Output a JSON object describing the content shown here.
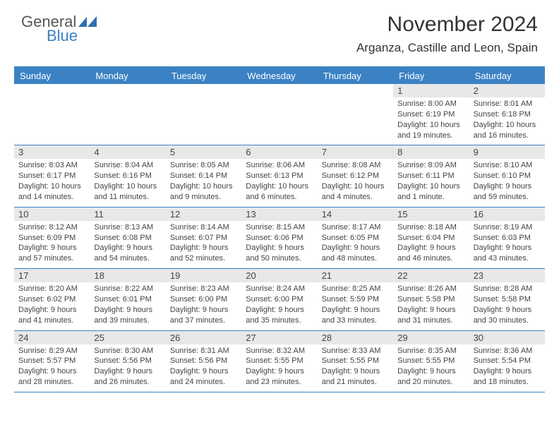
{
  "brand": {
    "general": "General",
    "blue": "Blue"
  },
  "header": {
    "title": "November 2024",
    "location": "Arganza, Castille and Leon, Spain"
  },
  "colors": {
    "accent": "#3b82c4",
    "header_bg": "#3b82c4",
    "daynum_bg": "#e8e8e8",
    "text": "#444444",
    "background": "#ffffff"
  },
  "day_labels": [
    "Sunday",
    "Monday",
    "Tuesday",
    "Wednesday",
    "Thursday",
    "Friday",
    "Saturday"
  ],
  "weeks": [
    [
      {
        "n": "",
        "sunrise": "",
        "sunset": "",
        "daylight": ""
      },
      {
        "n": "",
        "sunrise": "",
        "sunset": "",
        "daylight": ""
      },
      {
        "n": "",
        "sunrise": "",
        "sunset": "",
        "daylight": ""
      },
      {
        "n": "",
        "sunrise": "",
        "sunset": "",
        "daylight": ""
      },
      {
        "n": "",
        "sunrise": "",
        "sunset": "",
        "daylight": ""
      },
      {
        "n": "1",
        "sunrise": "Sunrise: 8:00 AM",
        "sunset": "Sunset: 6:19 PM",
        "daylight": "Daylight: 10 hours and 19 minutes."
      },
      {
        "n": "2",
        "sunrise": "Sunrise: 8:01 AM",
        "sunset": "Sunset: 6:18 PM",
        "daylight": "Daylight: 10 hours and 16 minutes."
      }
    ],
    [
      {
        "n": "3",
        "sunrise": "Sunrise: 8:03 AM",
        "sunset": "Sunset: 6:17 PM",
        "daylight": "Daylight: 10 hours and 14 minutes."
      },
      {
        "n": "4",
        "sunrise": "Sunrise: 8:04 AM",
        "sunset": "Sunset: 6:16 PM",
        "daylight": "Daylight: 10 hours and 11 minutes."
      },
      {
        "n": "5",
        "sunrise": "Sunrise: 8:05 AM",
        "sunset": "Sunset: 6:14 PM",
        "daylight": "Daylight: 10 hours and 9 minutes."
      },
      {
        "n": "6",
        "sunrise": "Sunrise: 8:06 AM",
        "sunset": "Sunset: 6:13 PM",
        "daylight": "Daylight: 10 hours and 6 minutes."
      },
      {
        "n": "7",
        "sunrise": "Sunrise: 8:08 AM",
        "sunset": "Sunset: 6:12 PM",
        "daylight": "Daylight: 10 hours and 4 minutes."
      },
      {
        "n": "8",
        "sunrise": "Sunrise: 8:09 AM",
        "sunset": "Sunset: 6:11 PM",
        "daylight": "Daylight: 10 hours and 1 minute."
      },
      {
        "n": "9",
        "sunrise": "Sunrise: 8:10 AM",
        "sunset": "Sunset: 6:10 PM",
        "daylight": "Daylight: 9 hours and 59 minutes."
      }
    ],
    [
      {
        "n": "10",
        "sunrise": "Sunrise: 8:12 AM",
        "sunset": "Sunset: 6:09 PM",
        "daylight": "Daylight: 9 hours and 57 minutes."
      },
      {
        "n": "11",
        "sunrise": "Sunrise: 8:13 AM",
        "sunset": "Sunset: 6:08 PM",
        "daylight": "Daylight: 9 hours and 54 minutes."
      },
      {
        "n": "12",
        "sunrise": "Sunrise: 8:14 AM",
        "sunset": "Sunset: 6:07 PM",
        "daylight": "Daylight: 9 hours and 52 minutes."
      },
      {
        "n": "13",
        "sunrise": "Sunrise: 8:15 AM",
        "sunset": "Sunset: 6:06 PM",
        "daylight": "Daylight: 9 hours and 50 minutes."
      },
      {
        "n": "14",
        "sunrise": "Sunrise: 8:17 AM",
        "sunset": "Sunset: 6:05 PM",
        "daylight": "Daylight: 9 hours and 48 minutes."
      },
      {
        "n": "15",
        "sunrise": "Sunrise: 8:18 AM",
        "sunset": "Sunset: 6:04 PM",
        "daylight": "Daylight: 9 hours and 46 minutes."
      },
      {
        "n": "16",
        "sunrise": "Sunrise: 8:19 AM",
        "sunset": "Sunset: 6:03 PM",
        "daylight": "Daylight: 9 hours and 43 minutes."
      }
    ],
    [
      {
        "n": "17",
        "sunrise": "Sunrise: 8:20 AM",
        "sunset": "Sunset: 6:02 PM",
        "daylight": "Daylight: 9 hours and 41 minutes."
      },
      {
        "n": "18",
        "sunrise": "Sunrise: 8:22 AM",
        "sunset": "Sunset: 6:01 PM",
        "daylight": "Daylight: 9 hours and 39 minutes."
      },
      {
        "n": "19",
        "sunrise": "Sunrise: 8:23 AM",
        "sunset": "Sunset: 6:00 PM",
        "daylight": "Daylight: 9 hours and 37 minutes."
      },
      {
        "n": "20",
        "sunrise": "Sunrise: 8:24 AM",
        "sunset": "Sunset: 6:00 PM",
        "daylight": "Daylight: 9 hours and 35 minutes."
      },
      {
        "n": "21",
        "sunrise": "Sunrise: 8:25 AM",
        "sunset": "Sunset: 5:59 PM",
        "daylight": "Daylight: 9 hours and 33 minutes."
      },
      {
        "n": "22",
        "sunrise": "Sunrise: 8:26 AM",
        "sunset": "Sunset: 5:58 PM",
        "daylight": "Daylight: 9 hours and 31 minutes."
      },
      {
        "n": "23",
        "sunrise": "Sunrise: 8:28 AM",
        "sunset": "Sunset: 5:58 PM",
        "daylight": "Daylight: 9 hours and 30 minutes."
      }
    ],
    [
      {
        "n": "24",
        "sunrise": "Sunrise: 8:29 AM",
        "sunset": "Sunset: 5:57 PM",
        "daylight": "Daylight: 9 hours and 28 minutes."
      },
      {
        "n": "25",
        "sunrise": "Sunrise: 8:30 AM",
        "sunset": "Sunset: 5:56 PM",
        "daylight": "Daylight: 9 hours and 26 minutes."
      },
      {
        "n": "26",
        "sunrise": "Sunrise: 8:31 AM",
        "sunset": "Sunset: 5:56 PM",
        "daylight": "Daylight: 9 hours and 24 minutes."
      },
      {
        "n": "27",
        "sunrise": "Sunrise: 8:32 AM",
        "sunset": "Sunset: 5:55 PM",
        "daylight": "Daylight: 9 hours and 23 minutes."
      },
      {
        "n": "28",
        "sunrise": "Sunrise: 8:33 AM",
        "sunset": "Sunset: 5:55 PM",
        "daylight": "Daylight: 9 hours and 21 minutes."
      },
      {
        "n": "29",
        "sunrise": "Sunrise: 8:35 AM",
        "sunset": "Sunset: 5:55 PM",
        "daylight": "Daylight: 9 hours and 20 minutes."
      },
      {
        "n": "30",
        "sunrise": "Sunrise: 8:36 AM",
        "sunset": "Sunset: 5:54 PM",
        "daylight": "Daylight: 9 hours and 18 minutes."
      }
    ]
  ]
}
